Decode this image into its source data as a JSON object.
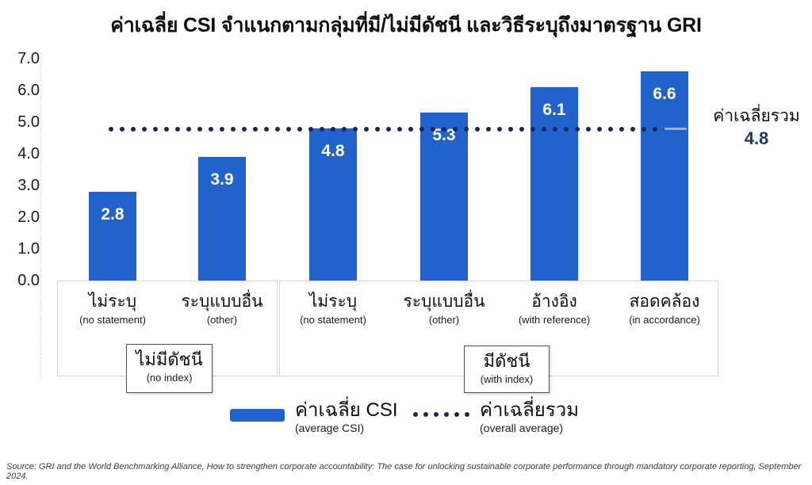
{
  "title": "ค่าเฉลี่ย CSI จำแนกตามกลุ่มที่มี/ไม่มีดัชนี และวิธีระบุถึงมาตรฐาน GRI",
  "chart_data": {
    "type": "bar",
    "title": "ค่าเฉลี่ย CSI จำแนกตามกลุ่มที่มี/ไม่มีดัชนี และวิธีระบุถึงมาตรฐาน GRI",
    "categories_thai": [
      "ไม่ระบุ",
      "ระบุแบบอื่น",
      "ไม่ระบุ",
      "ระบุแบบอื่น",
      "อ้างอิง",
      "สอดคล้อง"
    ],
    "categories_en": [
      "(no statement)",
      "(other)",
      "(no statement)",
      "(other)",
      "(with reference)",
      "(in accordance)"
    ],
    "values": [
      2.8,
      3.9,
      4.8,
      5.3,
      6.1,
      6.6
    ],
    "groups": [
      {
        "label_thai": "ไม่มีดัชนี",
        "label_en": "(no index)",
        "category_span": [
          0,
          1
        ]
      },
      {
        "label_thai": "มีดัชนี",
        "label_en": "(with index)",
        "category_span": [
          2,
          5
        ]
      }
    ],
    "overall_average": 4.8,
    "overall_average_label": "ค่าเฉลี่ยรวม",
    "ylim": [
      0,
      7
    ],
    "ytick_labels": [
      "0.0",
      "1.0",
      "2.0",
      "3.0",
      "4.0",
      "5.0",
      "6.0",
      "7.0"
    ],
    "grid": false,
    "legend_position": "bottom"
  },
  "annotation": {
    "label": "ค่าเฉลี่ยรวม",
    "value": "4.8"
  },
  "legend": {
    "bar": {
      "thai": "ค่าเฉลี่ย CSI",
      "en": "(average CSI)"
    },
    "dots": {
      "thai": "ค่าเฉลี่ยรวม",
      "en": "(overall average)"
    }
  },
  "source": "Source: GRI and the World Benchmarking Alliance, How to strengthen corporate accountability: The case for unlocking sustainable corporate performance through mandatory corporate reporting, September 2024.",
  "colors": {
    "bar": "#2262cc",
    "average_line": "#16265c",
    "average_value_text": "#1f3864",
    "end_cap": "#b3aca0",
    "box_border": "#d4d4d4",
    "subbox_border": "#4d4d4d"
  }
}
